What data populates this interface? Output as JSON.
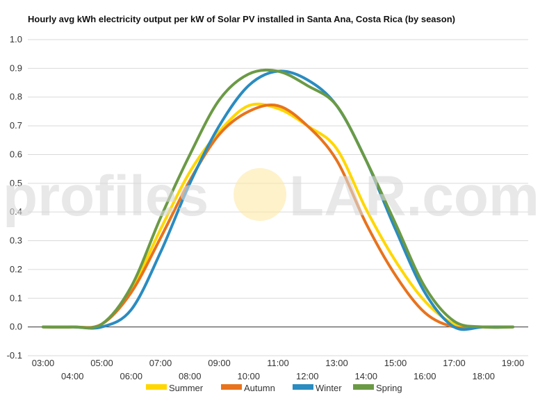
{
  "chart_data": {
    "type": "line",
    "title": "Hourly avg kWh electricity output per kW of Solar PV installed in Santa Ana, Costa Rica (by season)",
    "xlabel": "",
    "ylabel": "",
    "x": [
      "03:00",
      "04:00",
      "05:00",
      "06:00",
      "07:00",
      "08:00",
      "09:00",
      "10:00",
      "11:00",
      "12:00",
      "13:00",
      "14:00",
      "15:00",
      "16:00",
      "17:00",
      "18:00",
      "19:00"
    ],
    "ylim": [
      -0.1,
      1.0
    ],
    "yticks": [
      "1.0",
      "0.9",
      "0.8",
      "0.7",
      "0.6",
      "0.5",
      "0.4",
      "0.3",
      "0.2",
      "0.1",
      "0.0",
      "-0.1"
    ],
    "grid": true,
    "legend": "bottom",
    "series": [
      {
        "name": "Summer",
        "color": "#ffd700",
        "values": [
          0.0,
          0.0,
          0.01,
          0.13,
          0.34,
          0.54,
          0.68,
          0.77,
          0.76,
          0.7,
          0.62,
          0.41,
          0.23,
          0.09,
          0.01,
          0.0,
          0.0
        ]
      },
      {
        "name": "Autumn",
        "color": "#e8731c",
        "values": [
          0.0,
          0.0,
          0.01,
          0.12,
          0.31,
          0.51,
          0.67,
          0.75,
          0.77,
          0.7,
          0.58,
          0.36,
          0.18,
          0.05,
          0.0,
          0.0,
          0.0
        ]
      },
      {
        "name": "Winter",
        "color": "#2a8cc0",
        "values": [
          0.0,
          0.0,
          0.0,
          0.06,
          0.26,
          0.5,
          0.7,
          0.84,
          0.89,
          0.86,
          0.77,
          0.58,
          0.34,
          0.12,
          0.0,
          0.0,
          0.0
        ]
      },
      {
        "name": "Spring",
        "color": "#6b9a45",
        "values": [
          0.0,
          0.0,
          0.01,
          0.14,
          0.38,
          0.6,
          0.79,
          0.88,
          0.89,
          0.84,
          0.77,
          0.58,
          0.36,
          0.14,
          0.02,
          0.0,
          0.0
        ]
      }
    ]
  },
  "watermark": {
    "left": "profiles",
    "sun_text": "O",
    "right": "LAR.com"
  }
}
